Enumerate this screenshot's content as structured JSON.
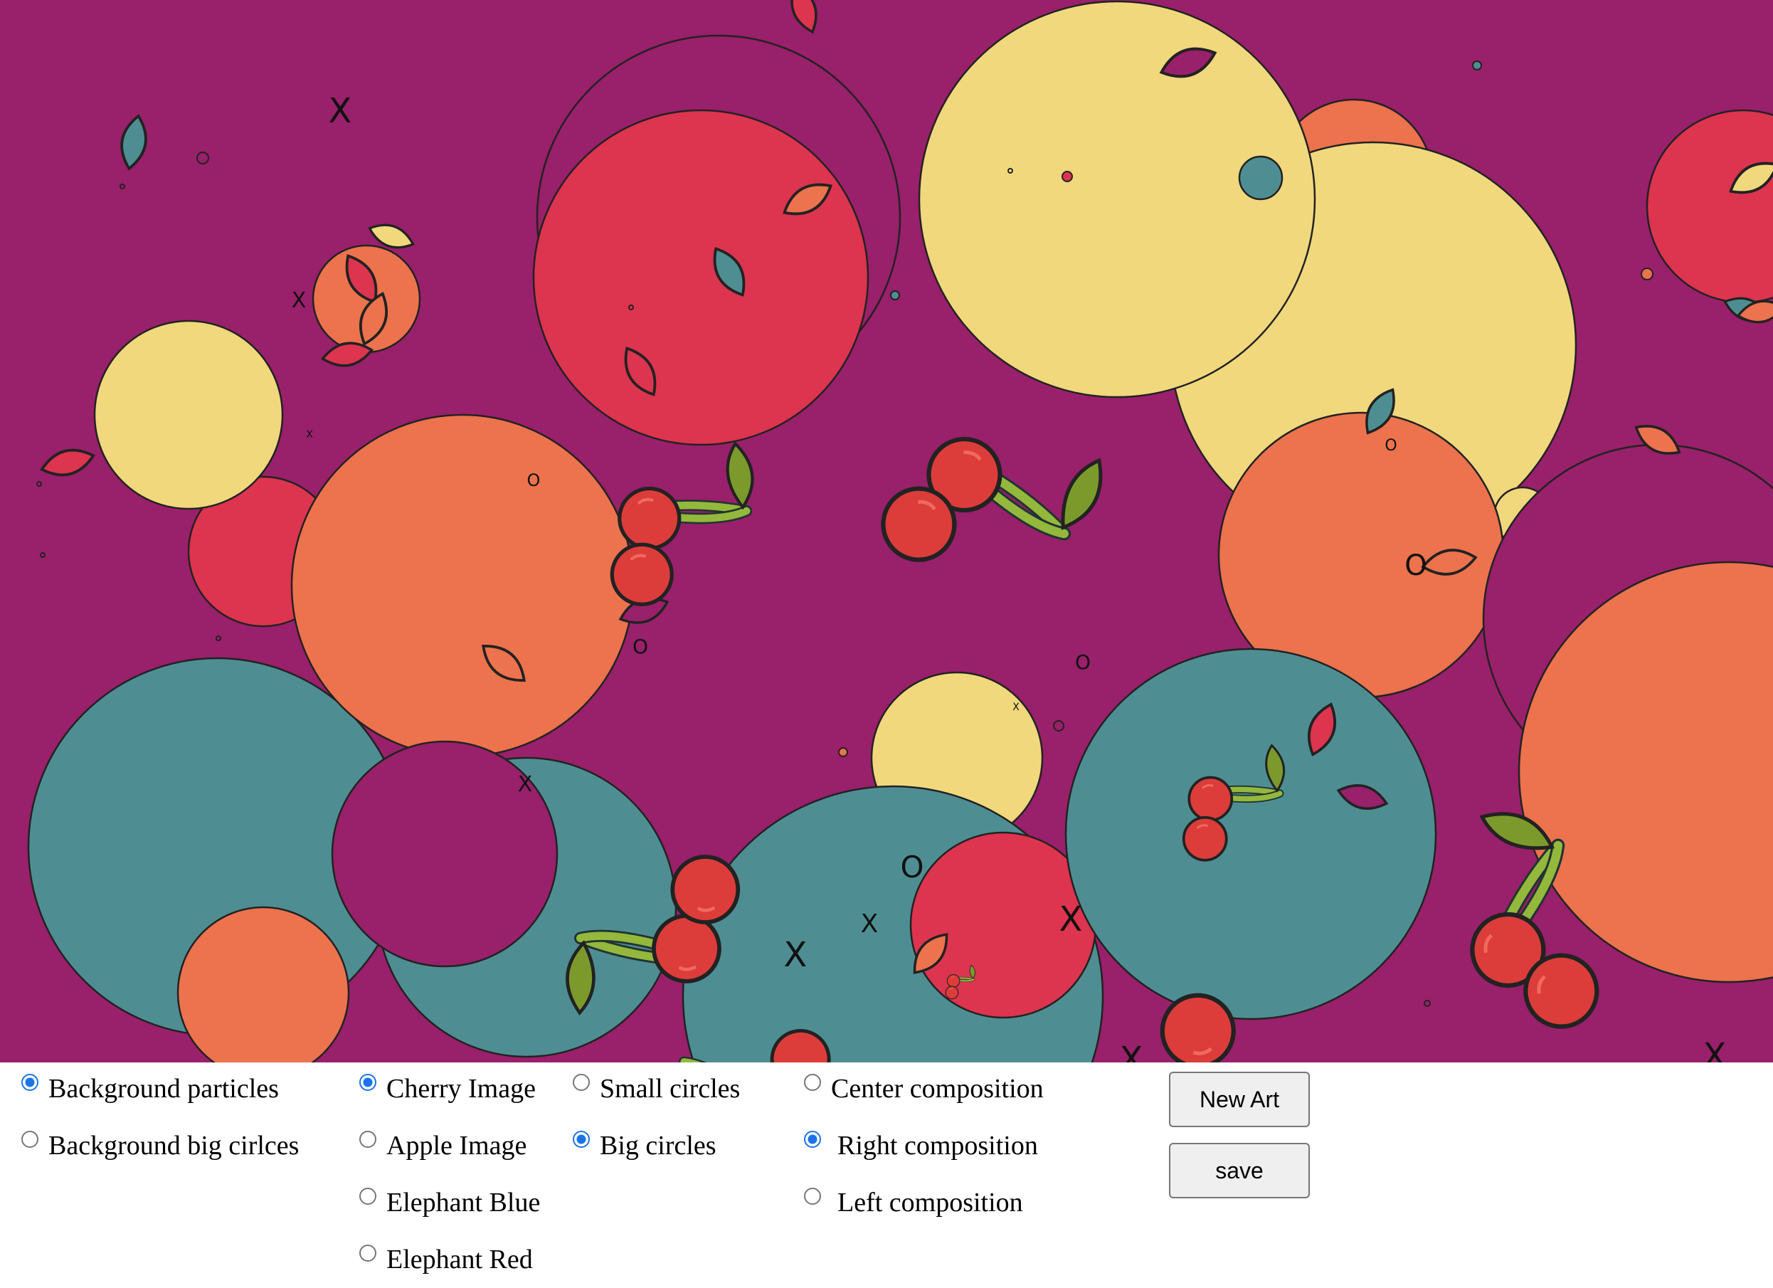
{
  "colors": {
    "background": "#99206a",
    "yellow": "#f1d87d",
    "red": "#dd344f",
    "orange": "#ec734d",
    "teal": "#4e8e93",
    "cherry_red": "#dc3d3a",
    "leaf_green": "#7c9a2c",
    "stem_green": "#93b83c",
    "control_accent": "#1a73e8"
  },
  "options": {
    "background": [
      {
        "label": "Background particles",
        "selected": true
      },
      {
        "label": "Background big cirlces",
        "selected": false
      }
    ],
    "image": [
      {
        "label": "Cherry Image",
        "selected": true
      },
      {
        "label": "Apple Image",
        "selected": false
      },
      {
        "label": "Elephant Blue",
        "selected": false
      },
      {
        "label": "Elephant Red",
        "selected": false
      }
    ],
    "circles": [
      {
        "label": "Small circles",
        "selected": false
      },
      {
        "label": "Big circles",
        "selected": true
      }
    ],
    "composition": [
      {
        "label": "Center composition",
        "selected": false
      },
      {
        "label": "Right composition",
        "selected": true
      },
      {
        "label": "Left composition",
        "selected": false
      }
    ]
  },
  "buttons": {
    "new_art": "New Art",
    "save": "save"
  },
  "art": {
    "marks": [
      "X",
      "O"
    ]
  }
}
